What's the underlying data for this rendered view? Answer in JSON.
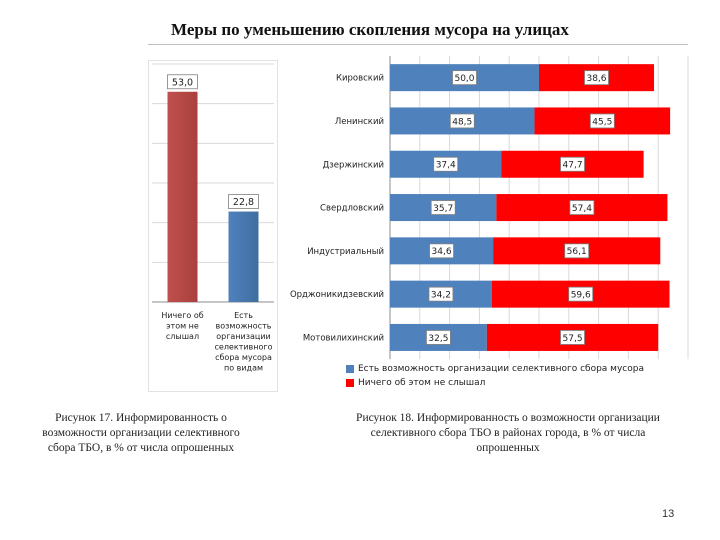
{
  "page_title": "Меры по уменьшению скопления мусора на улицах",
  "page_number": "13",
  "captions": {
    "left": "Рисунок 17. Информированность о возможности организации селективного сбора ТБО, в % от числа опрошенных",
    "right": "Рисунок 18. Информированность о возможности организации селективного сбора ТБО в районах города, в % от числа опрошенных"
  },
  "chart_data": [
    {
      "type": "bar",
      "categories": [
        "Ничего об этом не слышал",
        "Есть возможность организации селективного сбора мусора по видам"
      ],
      "values": [
        53.0,
        22.8
      ],
      "value_labels": [
        "53,0",
        "22,8"
      ],
      "colors": [
        "#c0504d",
        "#4f81bd"
      ],
      "ylim": [
        0,
        60
      ],
      "grid": true
    },
    {
      "type": "bar",
      "orientation": "horizontal",
      "stacked": true,
      "categories": [
        "Кировский",
        "Ленинский",
        "Дзержинский",
        "Свердловский",
        "Индустриальный",
        "Орджоникидзевский",
        "Мотовилихинский"
      ],
      "series": [
        {
          "name": "Есть возможность организации селективного сбора мусора",
          "color": "#4f81bd",
          "values": [
            50.0,
            48.5,
            37.4,
            35.7,
            34.6,
            34.2,
            32.5
          ],
          "value_labels": [
            "50,0",
            "48,5",
            "37,4",
            "35,7",
            "34,6",
            "34,2",
            "32,5"
          ]
        },
        {
          "name": "Ничего об этом не слышал",
          "color": "#ff0000",
          "values": [
            38.6,
            45.5,
            47.7,
            57.4,
            56.1,
            59.6,
            57.5
          ],
          "value_labels": [
            "38,6",
            "45,5",
            "47,7",
            "57,4",
            "56,1",
            "59,6",
            "57,5"
          ]
        }
      ],
      "legend_position": "bottom",
      "grid": true
    }
  ]
}
